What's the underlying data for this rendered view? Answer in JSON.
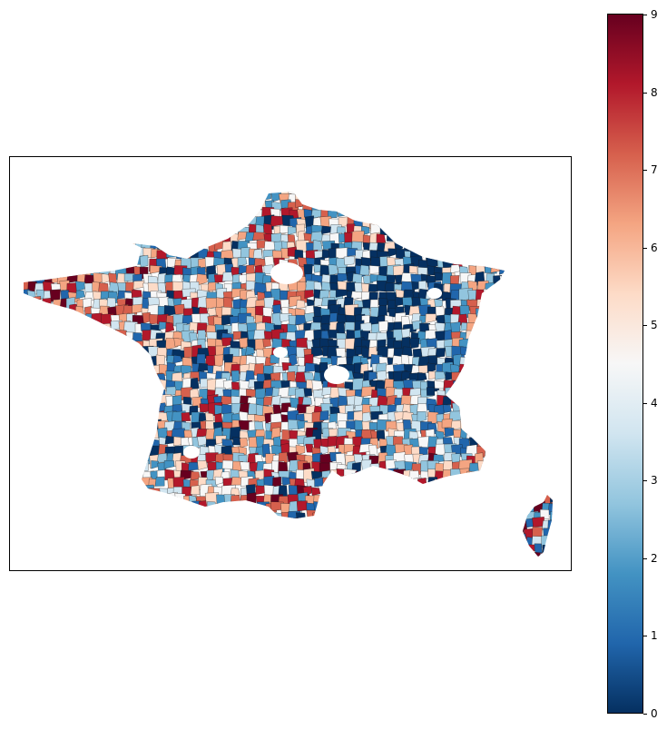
{
  "map": {
    "title": "",
    "region": "France (mainland and Corsica)",
    "feature": "choropleth of administrative subdivisions",
    "colormap": "RdBu_r",
    "colors": {
      "low": "#053061",
      "mid": "#f7f7f7",
      "high": "#67001f"
    }
  },
  "colorbar": {
    "min": 0,
    "max": 9,
    "ticks": [
      "0",
      "1",
      "2",
      "3",
      "4",
      "5",
      "6",
      "7",
      "8",
      "9"
    ],
    "gradient_stops": [
      "#053061",
      "#2166ac",
      "#4393c3",
      "#92c5de",
      "#d1e5f0",
      "#f7f7f7",
      "#fddbc7",
      "#f4a582",
      "#d6604d",
      "#b2182b",
      "#67001f"
    ]
  }
}
